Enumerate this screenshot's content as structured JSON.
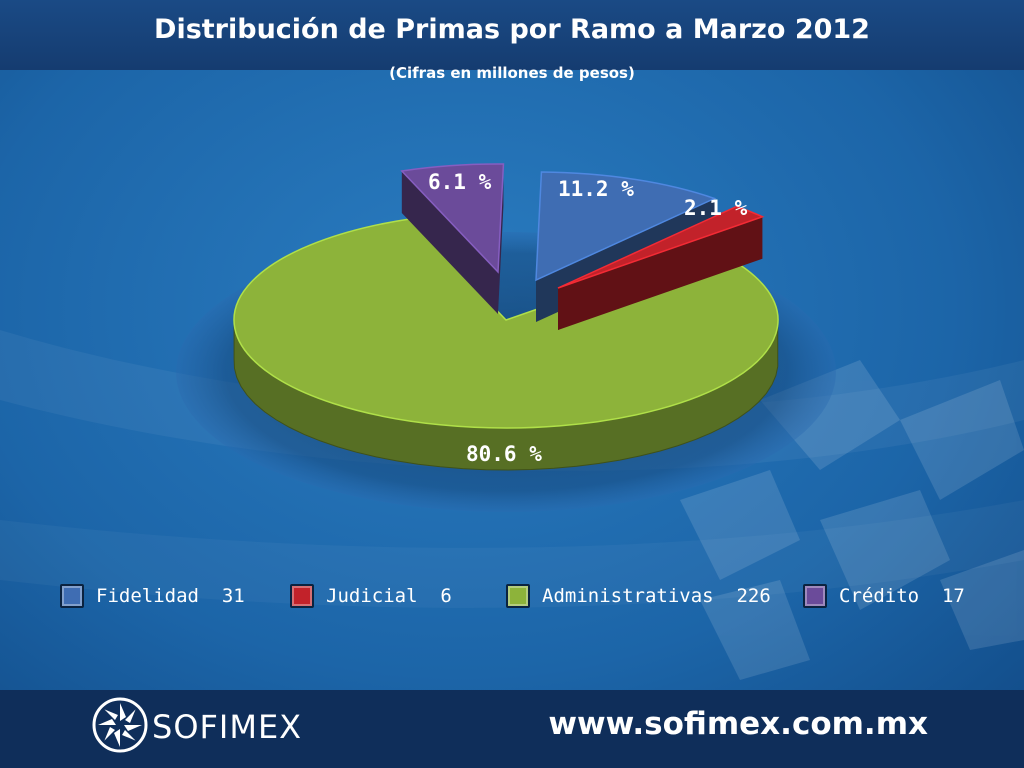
{
  "header": {
    "title": "Distribución de Primas por Ramo a Marzo 2012",
    "subtitle": "(Cifras en millones de pesos)"
  },
  "chart_data": {
    "type": "pie",
    "title": "Distribución de Primas por Ramo a Marzo 2012",
    "subtitle": "(Cifras en millones de pesos)",
    "slices": [
      {
        "name": "Fidelidad",
        "value": 31,
        "percent_label": "11.2 %",
        "color": "#3f6db3"
      },
      {
        "name": "Judicial",
        "value": 6,
        "percent_label": "2.1 %",
        "color": "#c2222a"
      },
      {
        "name": "Administrativas",
        "value": 226,
        "percent_label": "80.6 %",
        "color": "#8db33a"
      },
      {
        "name": "Crédito",
        "value": 17,
        "percent_label": "6.1 %",
        "color": "#6b4b9a"
      }
    ],
    "legend_placement": "bottom",
    "exploded": true,
    "style": "3d"
  },
  "legend": [
    {
      "label": "Fidelidad  31",
      "icon": "blue-square"
    },
    {
      "label": "Judicial  6",
      "icon": "red-square"
    },
    {
      "label": "Administrativas  226",
      "icon": "green-square"
    },
    {
      "label": "Crédito  17",
      "icon": "purple-square"
    }
  ],
  "footer": {
    "brand": "SOFIMEX",
    "url": "www.sofimex.com.mx",
    "logo_icon": "sofimex-pinwheel-logo"
  },
  "colors": {
    "background": "#1a5b96",
    "header_bar": "#143e72",
    "footer_bar": "#0f2e5a"
  }
}
